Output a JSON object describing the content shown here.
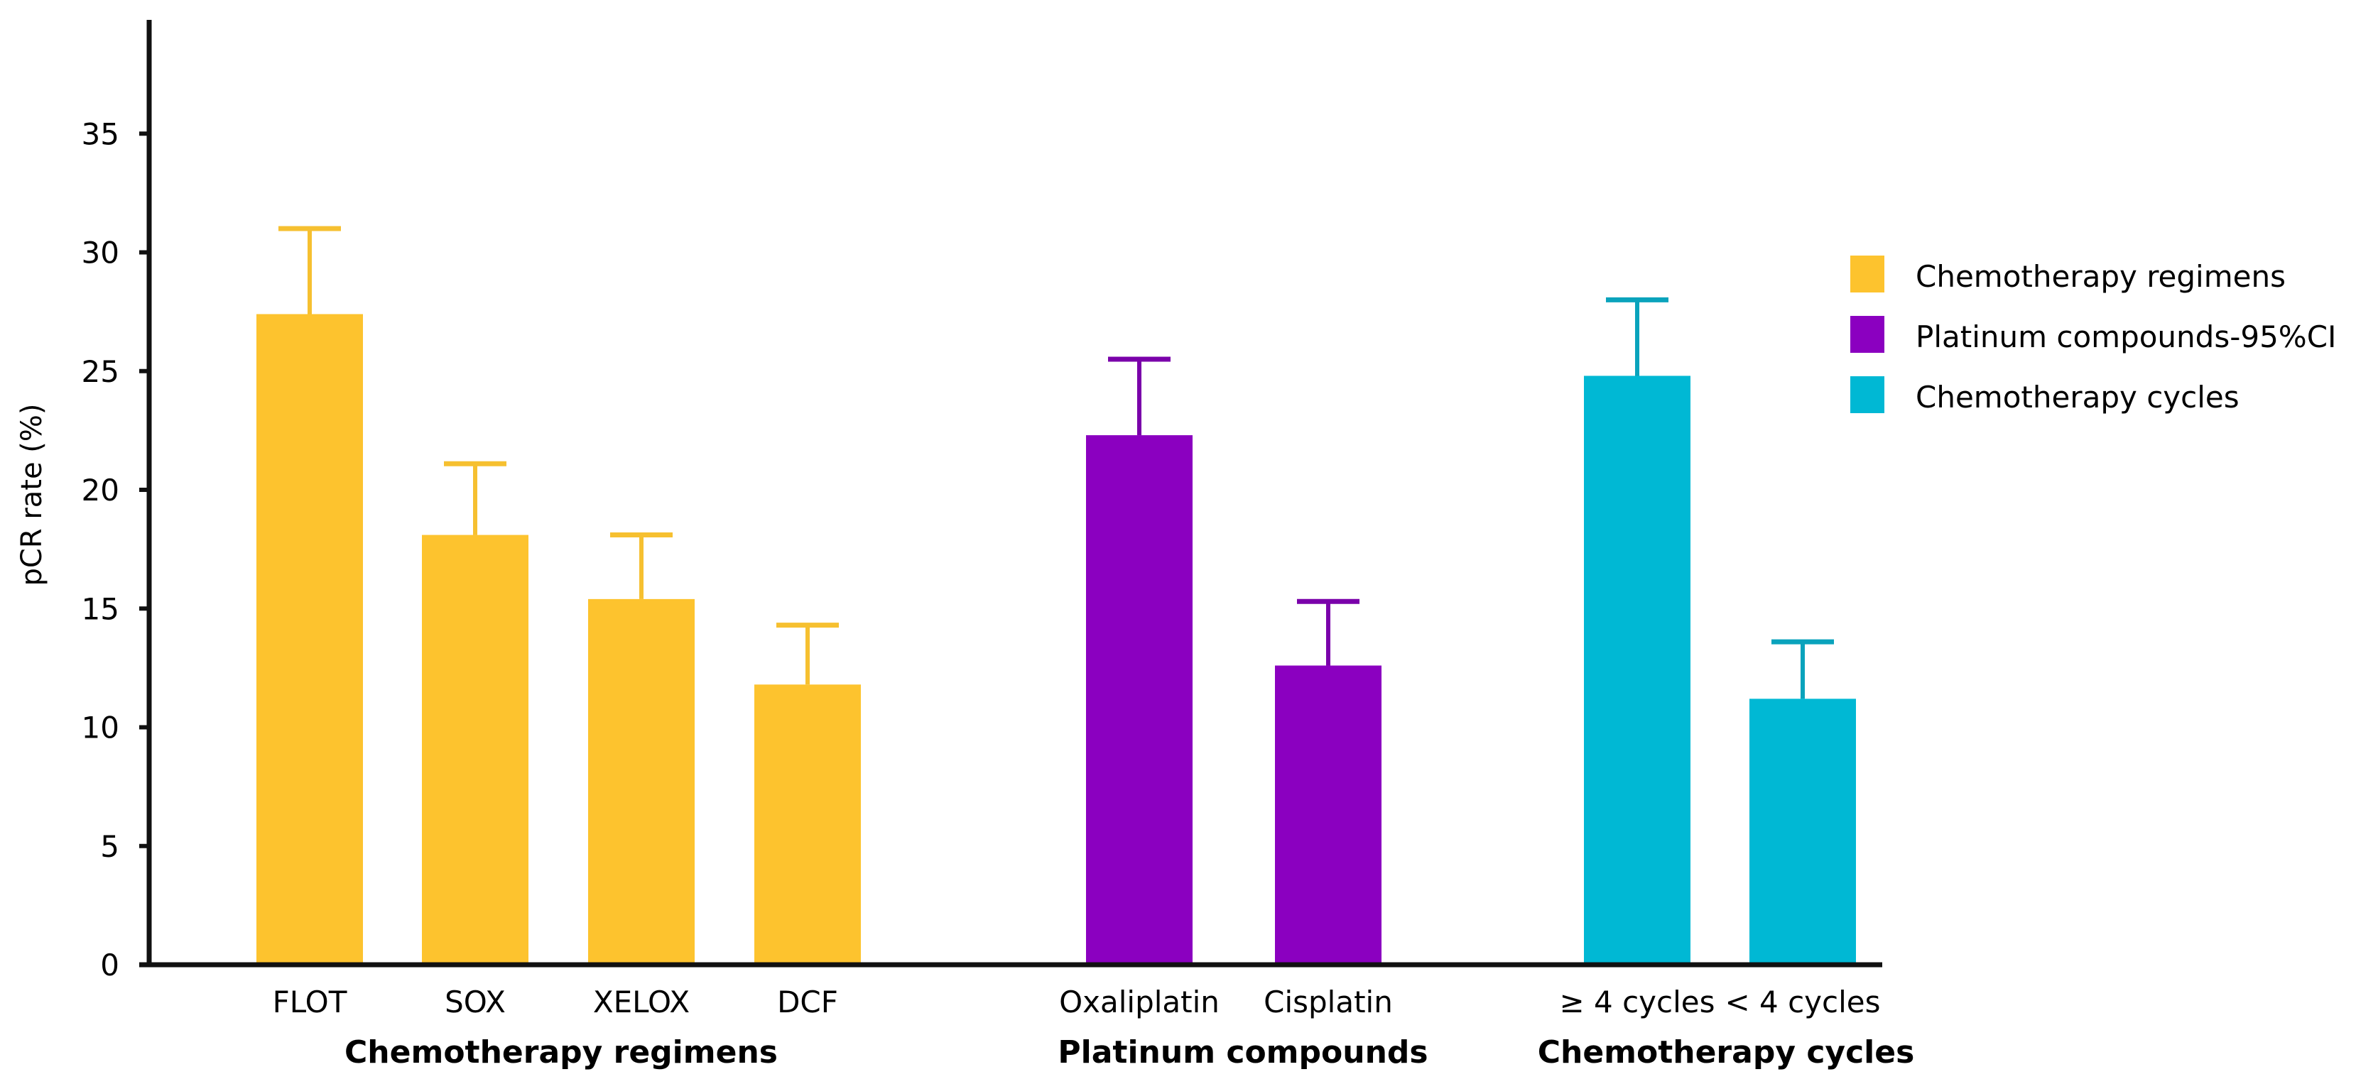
{
  "chart_data": {
    "type": "bar",
    "title": "",
    "xlabel": "",
    "ylabel": "pCR rate (%)",
    "ylim": [
      0,
      40
    ],
    "yticks": [
      0,
      5,
      10,
      15,
      20,
      25,
      30,
      35
    ],
    "grid": false,
    "error_bars": "upper 95% CI",
    "legend": {
      "position": "right",
      "entries": [
        {
          "label": "Chemotherapy regimens",
          "color": "#FDC32E"
        },
        {
          "label": "Platinum compounds-95%CI",
          "color": "#8B00C0"
        },
        {
          "label": "Chemotherapy cycles",
          "color": "#00B8D4"
        }
      ]
    },
    "groups": [
      {
        "name": "Chemotherapy regimens",
        "color": "#FDC32E",
        "errcolor": "#F6C030",
        "categories": [
          "FLOT",
          "SOX",
          "XELOX",
          "DCF"
        ],
        "values": [
          27.4,
          18.1,
          15.4,
          11.8
        ],
        "upper_ci": [
          31.0,
          21.1,
          18.1,
          14.3
        ]
      },
      {
        "name": "Platinum compounds",
        "color": "#8B00C0",
        "errcolor": "#7A00AA",
        "categories": [
          "Oxaliplatin",
          "Cisplatin"
        ],
        "values": [
          22.3,
          12.6
        ],
        "upper_ci": [
          25.5,
          15.3
        ]
      },
      {
        "name": "Chemotherapy cycles",
        "color": "#00B8D4",
        "errcolor": "#0AA3BC",
        "categories": [
          "≥ 4 cycles",
          "< 4 cycles"
        ],
        "values": [
          24.8,
          11.2
        ],
        "upper_ci": [
          28.0,
          13.6
        ]
      }
    ]
  }
}
